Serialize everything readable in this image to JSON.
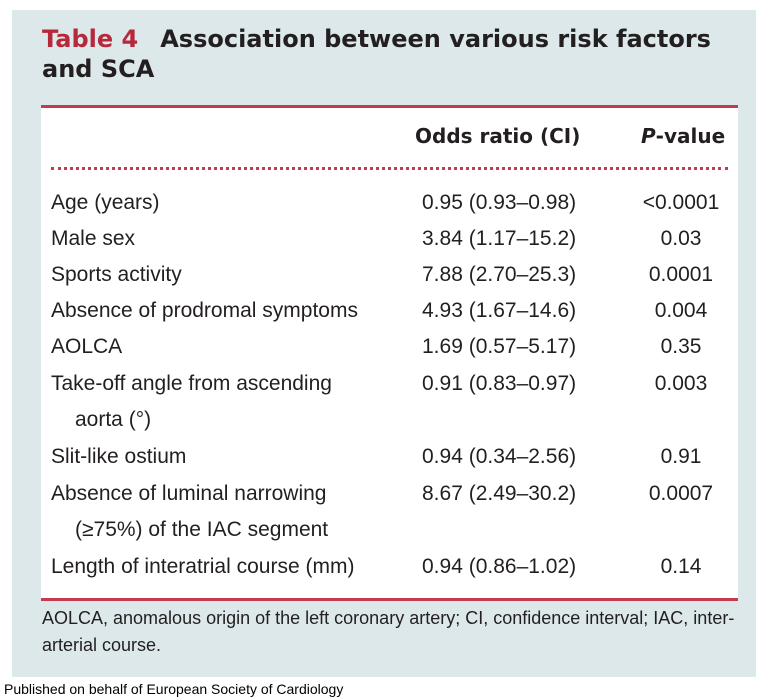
{
  "title": {
    "label": "Table 4",
    "text": "Association between various risk factors and SCA"
  },
  "table": {
    "columns": {
      "factor": "",
      "odds_ratio": "Odds ratio (CI)",
      "p_value_italic": "P",
      "p_value_rest": "-value"
    },
    "rows": [
      {
        "factor": "Age (years)",
        "factor_cont": "",
        "odds_ratio": "0.95 (0.93–0.98)",
        "p_value": "<0.0001"
      },
      {
        "factor": "Male sex",
        "factor_cont": "",
        "odds_ratio": "3.84 (1.17–15.2)",
        "p_value": "0.03"
      },
      {
        "factor": "Sports activity",
        "factor_cont": "",
        "odds_ratio": "7.88 (2.70–25.3)",
        "p_value": "0.0001"
      },
      {
        "factor": "Absence of prodromal symptoms",
        "factor_cont": "",
        "odds_ratio": "4.93 (1.67–14.6)",
        "p_value": "0.004"
      },
      {
        "factor": "AOLCA",
        "factor_cont": "",
        "odds_ratio": "1.69 (0.57–5.17)",
        "p_value": "0.35"
      },
      {
        "factor": "Take-off angle from ascending",
        "factor_cont": "aorta (°)",
        "odds_ratio": "0.91 (0.83–0.97)",
        "p_value": "0.003"
      },
      {
        "factor": "Slit-like ostium",
        "factor_cont": "",
        "odds_ratio": "0.94 (0.34–2.56)",
        "p_value": "0.91"
      },
      {
        "factor": "Absence of luminal narrowing",
        "factor_cont": "(≥75%) of the IAC segment",
        "odds_ratio": "8.67 (2.49–30.2)",
        "p_value": "0.0007"
      },
      {
        "factor": "Length of interatrial course (mm)",
        "factor_cont": "",
        "odds_ratio": "0.94 (0.86–1.02)",
        "p_value": "0.14"
      }
    ]
  },
  "footnote": "AOLCA, anomalous origin of the left coronary artery; CI, confidence interval; IAC, inter-arterial course.",
  "publisher": "Published on behalf of European Society of Cardiology",
  "colors": {
    "accent": "#b8283c",
    "rule": "#c23b4e",
    "panel_background": "#dce8ea"
  }
}
